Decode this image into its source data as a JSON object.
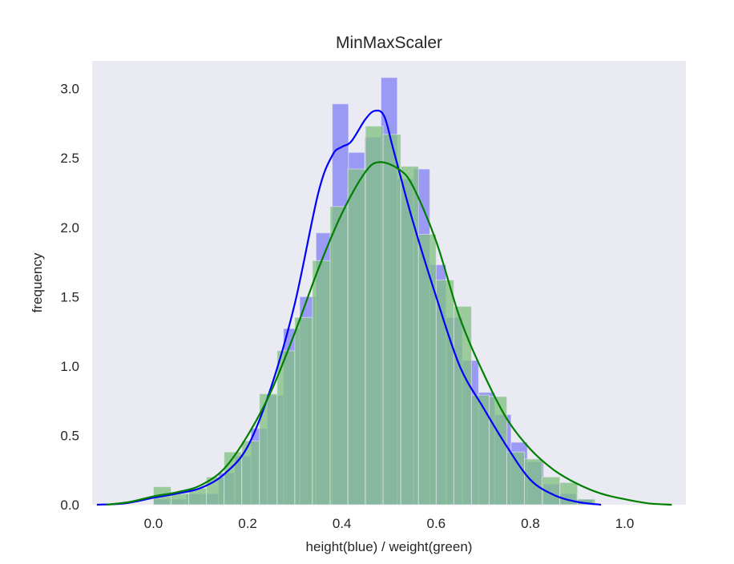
{
  "chart_data": {
    "type": "bar",
    "title": "MinMaxScaler",
    "xlabel": "height(blue) / weight(green)",
    "ylabel": "frequency",
    "xlim": [
      -0.13,
      1.13
    ],
    "ylim": [
      0,
      3.2
    ],
    "xticks": [
      0.0,
      0.2,
      0.4,
      0.6,
      0.8,
      1.0
    ],
    "xtick_labels": [
      "0.0",
      "0.2",
      "0.4",
      "0.6",
      "0.8",
      "1.0"
    ],
    "yticks": [
      0.0,
      0.5,
      1.0,
      1.5,
      2.0,
      2.5,
      3.0
    ],
    "ytick_labels": [
      "0.0",
      "0.5",
      "1.0",
      "1.5",
      "2.0",
      "2.5",
      "3.0"
    ],
    "grid": false,
    "legend": false,
    "background_color": "#eaeaf2",
    "series": [
      {
        "name": "height",
        "color": "#0000ff",
        "hist_color": "#7f7ff5",
        "bins": [
          {
            "x0": 0.0,
            "x1": 0.0345,
            "count": 0.04
          },
          {
            "x0": 0.0345,
            "x1": 0.069,
            "count": 0.04
          },
          {
            "x0": 0.069,
            "x1": 0.1035,
            "count": 0.08
          },
          {
            "x0": 0.1035,
            "x1": 0.138,
            "count": 0.08
          },
          {
            "x0": 0.138,
            "x1": 0.1725,
            "count": 0.23
          },
          {
            "x0": 0.1725,
            "x1": 0.207,
            "count": 0.35
          },
          {
            "x0": 0.207,
            "x1": 0.2415,
            "count": 0.55
          },
          {
            "x0": 0.2415,
            "x1": 0.276,
            "count": 0.79
          },
          {
            "x0": 0.276,
            "x1": 0.3105,
            "count": 1.27
          },
          {
            "x0": 0.3105,
            "x1": 0.345,
            "count": 1.5
          },
          {
            "x0": 0.345,
            "x1": 0.3795,
            "count": 1.96
          },
          {
            "x0": 0.3795,
            "x1": 0.414,
            "count": 2.89
          },
          {
            "x0": 0.414,
            "x1": 0.4485,
            "count": 2.54
          },
          {
            "x0": 0.4485,
            "x1": 0.483,
            "count": 2.65
          },
          {
            "x0": 0.483,
            "x1": 0.5175,
            "count": 3.08
          },
          {
            "x0": 0.5175,
            "x1": 0.552,
            "count": 2.35
          },
          {
            "x0": 0.552,
            "x1": 0.5865,
            "count": 2.42
          },
          {
            "x0": 0.5865,
            "x1": 0.621,
            "count": 1.73
          },
          {
            "x0": 0.621,
            "x1": 0.6555,
            "count": 1.35
          },
          {
            "x0": 0.6555,
            "x1": 0.69,
            "count": 1.04
          },
          {
            "x0": 0.69,
            "x1": 0.7245,
            "count": 0.81
          },
          {
            "x0": 0.7245,
            "x1": 0.759,
            "count": 0.65
          },
          {
            "x0": 0.759,
            "x1": 0.7935,
            "count": 0.45
          },
          {
            "x0": 0.7935,
            "x1": 0.828,
            "count": 0.31
          },
          {
            "x0": 0.828,
            "x1": 0.8625,
            "count": 0.15
          },
          {
            "x0": 0.8625,
            "x1": 0.897,
            "count": 0.08
          },
          {
            "x0": 0.897,
            "x1": 0.9315,
            "count": 0.04
          }
        ],
        "kde": {
          "x": [
            -0.12,
            -0.06,
            0.0,
            0.05,
            0.1,
            0.15,
            0.2,
            0.25,
            0.3,
            0.35,
            0.38,
            0.4,
            0.42,
            0.45,
            0.47,
            0.49,
            0.51,
            0.55,
            0.6,
            0.65,
            0.7,
            0.75,
            0.8,
            0.85,
            0.9,
            0.95
          ],
          "y": [
            0.0,
            0.01,
            0.05,
            0.08,
            0.12,
            0.22,
            0.42,
            0.85,
            1.45,
            2.25,
            2.52,
            2.58,
            2.62,
            2.78,
            2.84,
            2.8,
            2.55,
            2.05,
            1.5,
            1.0,
            0.7,
            0.42,
            0.18,
            0.07,
            0.02,
            0.0
          ]
        }
      },
      {
        "name": "weight",
        "color": "#008000",
        "hist_color": "#80c080",
        "bins": [
          {
            "x0": 0.0,
            "x1": 0.0375,
            "count": 0.13
          },
          {
            "x0": 0.0375,
            "x1": 0.075,
            "count": 0.08
          },
          {
            "x0": 0.075,
            "x1": 0.1125,
            "count": 0.12
          },
          {
            "x0": 0.1125,
            "x1": 0.15,
            "count": 0.2
          },
          {
            "x0": 0.15,
            "x1": 0.1875,
            "count": 0.38
          },
          {
            "x0": 0.1875,
            "x1": 0.225,
            "count": 0.46
          },
          {
            "x0": 0.225,
            "x1": 0.2625,
            "count": 0.8
          },
          {
            "x0": 0.2625,
            "x1": 0.3,
            "count": 1.11
          },
          {
            "x0": 0.3,
            "x1": 0.3375,
            "count": 1.35
          },
          {
            "x0": 0.3375,
            "x1": 0.375,
            "count": 1.76
          },
          {
            "x0": 0.375,
            "x1": 0.4125,
            "count": 2.15
          },
          {
            "x0": 0.4125,
            "x1": 0.45,
            "count": 2.42
          },
          {
            "x0": 0.45,
            "x1": 0.4875,
            "count": 2.73
          },
          {
            "x0": 0.4875,
            "x1": 0.525,
            "count": 2.67
          },
          {
            "x0": 0.525,
            "x1": 0.5625,
            "count": 2.44
          },
          {
            "x0": 0.5625,
            "x1": 0.6,
            "count": 1.95
          },
          {
            "x0": 0.6,
            "x1": 0.6375,
            "count": 1.62
          },
          {
            "x0": 0.6375,
            "x1": 0.675,
            "count": 1.43
          },
          {
            "x0": 0.675,
            "x1": 0.7125,
            "count": 0.79
          },
          {
            "x0": 0.7125,
            "x1": 0.75,
            "count": 0.78
          },
          {
            "x0": 0.75,
            "x1": 0.7875,
            "count": 0.38
          },
          {
            "x0": 0.7875,
            "x1": 0.825,
            "count": 0.33
          },
          {
            "x0": 0.825,
            "x1": 0.8625,
            "count": 0.2
          },
          {
            "x0": 0.8625,
            "x1": 0.9,
            "count": 0.16
          },
          {
            "x0": 0.9,
            "x1": 0.9375,
            "count": 0.04
          }
        ],
        "kde": {
          "x": [
            -0.1,
            -0.05,
            0.0,
            0.05,
            0.1,
            0.15,
            0.2,
            0.25,
            0.3,
            0.35,
            0.4,
            0.45,
            0.48,
            0.52,
            0.55,
            0.6,
            0.65,
            0.7,
            0.75,
            0.8,
            0.85,
            0.9,
            0.95,
            1.0,
            1.05,
            1.1
          ],
          "y": [
            0.0,
            0.02,
            0.06,
            0.09,
            0.14,
            0.26,
            0.5,
            0.82,
            1.24,
            1.7,
            2.1,
            2.4,
            2.47,
            2.42,
            2.3,
            1.9,
            1.35,
            0.95,
            0.62,
            0.4,
            0.25,
            0.15,
            0.08,
            0.04,
            0.01,
            0.0
          ]
        }
      }
    ]
  }
}
